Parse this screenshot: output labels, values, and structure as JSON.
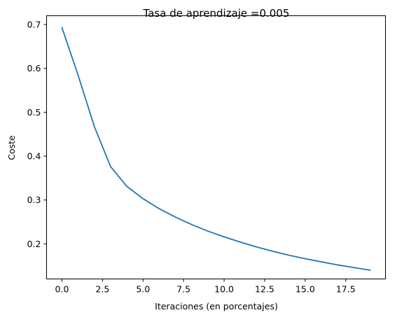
{
  "chart_data": {
    "type": "line",
    "title": "Tasa de aprendizaje =0.005",
    "xlabel": "Iteraciones (en porcentajes)",
    "ylabel": "Coste",
    "xlim": [
      -0.95,
      19.95
    ],
    "ylim": [
      0.12,
      0.72
    ],
    "x_ticks": [
      0.0,
      2.5,
      5.0,
      7.5,
      10.0,
      12.5,
      15.0,
      17.5
    ],
    "x_tick_labels": [
      "0.0",
      "2.5",
      "5.0",
      "7.5",
      "10.0",
      "12.5",
      "15.0",
      "17.5"
    ],
    "y_ticks": [
      0.2,
      0.3,
      0.4,
      0.5,
      0.6,
      0.7
    ],
    "y_tick_labels": [
      "0.2",
      "0.3",
      "0.4",
      "0.5",
      "0.6",
      "0.7"
    ],
    "grid": false,
    "series": [
      {
        "color": "#1f77b4",
        "x": [
          0,
          1,
          2,
          3,
          4,
          5,
          6,
          7,
          8,
          9,
          10,
          11,
          12,
          13,
          14,
          15,
          16,
          17,
          18,
          19
        ],
        "values": [
          0.693,
          0.584,
          0.467,
          0.376,
          0.331,
          0.303,
          0.28,
          0.261,
          0.244,
          0.229,
          0.216,
          0.204,
          0.193,
          0.183,
          0.174,
          0.166,
          0.159,
          0.152,
          0.146,
          0.14
        ]
      }
    ]
  }
}
